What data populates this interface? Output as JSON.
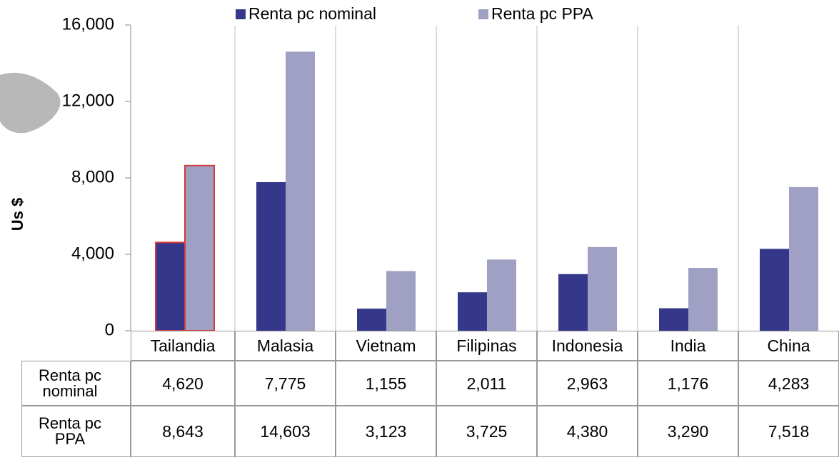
{
  "chart_data": {
    "type": "bar",
    "ylabel": "Us $",
    "categories": [
      "Tailandia",
      "Malasia",
      "Vietnam",
      "Filipinas",
      "Indonesia",
      "India",
      "China"
    ],
    "series": [
      {
        "name": "Renta pc nominal",
        "color": "#35388a",
        "values": [
          4620,
          7775,
          1155,
          2011,
          2963,
          1176,
          4283
        ],
        "value_labels": [
          "4,620",
          "7,775",
          "1,155",
          "2,011",
          "2,963",
          "1,176",
          "4,283"
        ]
      },
      {
        "name": "Renta pc PPA",
        "color": "#9fa0c3",
        "values": [
          8643,
          14603,
          3123,
          3725,
          4380,
          3290,
          7518
        ],
        "value_labels": [
          "8,643",
          "14,603",
          "3,123",
          "3,725",
          "4,380",
          "3,290",
          "7,518"
        ]
      }
    ],
    "ylim": [
      0,
      16000
    ],
    "yticks": [
      0,
      {
        "value": 4000,
        "label": "4,000"
      },
      {
        "value": 8000,
        "label": "8,000"
      },
      {
        "value": 12000,
        "label": "12,000"
      },
      {
        "value": 16000,
        "label": "16,000"
      }
    ],
    "highlight": "Tailandia",
    "highlight_color": "#d33b3b",
    "legend": "top"
  }
}
